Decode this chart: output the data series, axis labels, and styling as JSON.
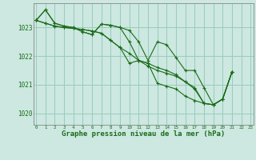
{
  "background_color": "#cce8e0",
  "grid_color": "#99ccbb",
  "line_color": "#1a6b1a",
  "xlabel": "Graphe pression niveau de la mer (hPa)",
  "xlabel_fontsize": 6.5,
  "ytick_values": [
    1020,
    1021,
    1022,
    1023
  ],
  "ylim": [
    1019.6,
    1023.85
  ],
  "xlim": [
    -0.3,
    23.3
  ],
  "figsize": [
    3.2,
    2.0
  ],
  "dpi": 100,
  "series": [
    {
      "x": [
        0,
        1,
        2,
        3,
        4,
        5,
        6,
        7,
        8,
        9,
        10,
        11,
        12,
        13,
        14,
        15,
        16,
        17,
        18,
        19,
        20,
        21
      ],
      "y": [
        1023.25,
        1023.62,
        1023.15,
        1023.05,
        1023.0,
        1022.85,
        1022.75,
        1023.12,
        1023.08,
        1023.0,
        1022.9,
        1022.5,
        1021.85,
        1022.5,
        1022.4,
        1021.95,
        1021.5,
        1021.5,
        1020.9,
        1020.3,
        1020.5,
        1021.45
      ]
    },
    {
      "x": [
        0,
        1,
        2,
        3,
        4,
        5,
        6,
        7,
        8,
        9,
        10,
        11,
        12,
        13,
        14,
        15,
        16,
        17,
        18,
        19,
        20,
        21
      ],
      "y": [
        1023.25,
        1023.62,
        1023.15,
        1023.05,
        1023.0,
        1022.85,
        1022.75,
        1023.12,
        1023.08,
        1023.0,
        1022.5,
        1021.85,
        1021.75,
        1021.6,
        1021.5,
        1021.35,
        1021.1,
        1020.9,
        1020.35,
        1020.3,
        1020.5,
        1021.45
      ]
    },
    {
      "x": [
        0,
        1,
        2,
        3,
        4,
        5,
        6,
        7,
        8,
        9,
        10,
        11,
        12,
        13,
        14,
        15,
        16,
        17,
        18,
        19,
        20,
        21
      ],
      "y": [
        1023.25,
        1023.15,
        1023.05,
        1023.0,
        1022.97,
        1022.93,
        1022.88,
        1022.8,
        1022.55,
        1022.3,
        1021.75,
        1021.85,
        1021.75,
        1021.05,
        1020.95,
        1020.85,
        1020.6,
        1020.45,
        1020.35,
        1020.3,
        1020.5,
        1021.45
      ]
    },
    {
      "x": [
        0,
        1,
        2,
        3,
        4,
        5,
        6,
        7,
        8,
        9,
        10,
        11,
        12,
        13,
        14,
        15,
        16,
        17,
        18,
        19,
        20,
        21
      ],
      "y": [
        1023.25,
        1023.15,
        1023.05,
        1023.0,
        1022.97,
        1022.93,
        1022.88,
        1022.8,
        1022.55,
        1022.3,
        1022.1,
        1021.85,
        1021.65,
        1021.5,
        1021.4,
        1021.3,
        1021.1,
        1020.85,
        1020.35,
        1020.3,
        1020.5,
        1021.45
      ]
    }
  ]
}
